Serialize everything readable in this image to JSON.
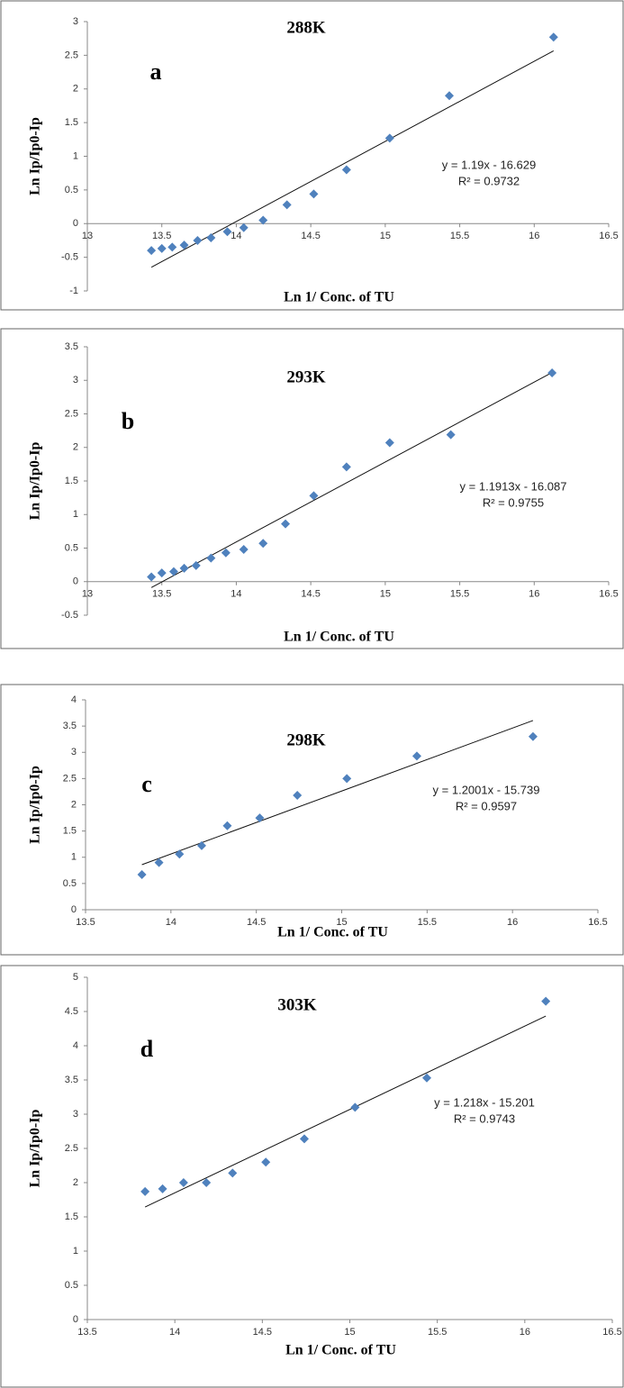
{
  "chart_data": [
    {
      "type": "scatter",
      "title": "288K",
      "panel_label": "a",
      "x_label": "Ln 1/ Conc. of TU",
      "y_label": "Ln Ip/Ip0-Ip",
      "color": "#4f81bd",
      "x": [
        13.43,
        13.5,
        13.57,
        13.65,
        13.74,
        13.83,
        13.94,
        14.05,
        14.18,
        14.34,
        14.52,
        14.74,
        15.03,
        15.43,
        16.13
      ],
      "values": [
        -0.4,
        -0.37,
        -0.35,
        -0.32,
        -0.25,
        -0.21,
        -0.12,
        -0.06,
        0.05,
        0.28,
        0.44,
        0.8,
        1.27,
        1.9,
        2.77
      ],
      "xlim": [
        13,
        16.5
      ],
      "ylim": [
        -1,
        3
      ],
      "xticks": [
        13,
        13.5,
        14,
        14.5,
        15,
        15.5,
        16,
        16.5
      ],
      "yticks": [
        -1,
        -0.5,
        0,
        0.5,
        1,
        1.5,
        2,
        2.5,
        3
      ],
      "trendline": {
        "slope": 1.19,
        "intercept": -16.629
      },
      "equation": "y = 1.19x - 16.629",
      "r2": "R² = 0.9732"
    },
    {
      "type": "scatter",
      "title": "293K",
      "panel_label": "b",
      "x_label": "Ln 1/ Conc. of TU",
      "y_label": "Ln Ip/Ip0-Ip",
      "color": "#4f81bd",
      "x": [
        13.43,
        13.5,
        13.58,
        13.65,
        13.73,
        13.83,
        13.93,
        14.05,
        14.18,
        14.33,
        14.52,
        14.74,
        15.03,
        15.44,
        16.12
      ],
      "values": [
        0.07,
        0.13,
        0.15,
        0.2,
        0.24,
        0.35,
        0.43,
        0.48,
        0.57,
        0.86,
        1.28,
        1.71,
        2.07,
        2.19,
        3.11
      ],
      "xlim": [
        13,
        16.5
      ],
      "ylim": [
        -0.5,
        3.5
      ],
      "xticks": [
        13,
        13.5,
        14,
        14.5,
        15,
        15.5,
        16,
        16.5
      ],
      "yticks": [
        -0.5,
        0,
        0.5,
        1,
        1.5,
        2,
        2.5,
        3,
        3.5
      ],
      "trendline": {
        "slope": 1.1913,
        "intercept": -16.087
      },
      "equation": "y = 1.1913x - 16.087",
      "r2": "R² = 0.9755"
    },
    {
      "type": "scatter",
      "title": "298K",
      "panel_label": "c",
      "x_label": "Ln 1/ Conc. of TU",
      "y_label": "Ln Ip/Ip0-Ip",
      "color": "#4f81bd",
      "x": [
        13.83,
        13.93,
        14.05,
        14.18,
        14.33,
        14.52,
        14.74,
        15.03,
        15.44,
        16.12
      ],
      "values": [
        0.67,
        0.9,
        1.06,
        1.22,
        1.6,
        1.75,
        2.18,
        2.5,
        2.93,
        3.3
      ],
      "xlim": [
        13.5,
        16.5
      ],
      "ylim": [
        0,
        4
      ],
      "xticks": [
        13.5,
        14,
        14.5,
        15,
        15.5,
        16,
        16.5
      ],
      "yticks": [
        0,
        0.5,
        1,
        1.5,
        2,
        2.5,
        3,
        3.5,
        4
      ],
      "trendline": {
        "slope": 1.2001,
        "intercept": -15.739
      },
      "equation": "y = 1.2001x - 15.739",
      "r2": "R² = 0.9597"
    },
    {
      "type": "scatter",
      "title": "303K",
      "panel_label": "d",
      "x_label": "Ln 1/ Conc. of TU",
      "y_label": "Ln Ip/Ip0-Ip",
      "color": "#4f81bd",
      "x": [
        13.83,
        13.93,
        14.05,
        14.18,
        14.33,
        14.52,
        14.74,
        15.03,
        15.44,
        16.12
      ],
      "values": [
        1.87,
        1.91,
        2.0,
        2.0,
        2.14,
        2.3,
        2.64,
        3.1,
        3.53,
        4.65
      ],
      "xlim": [
        13.5,
        16.5
      ],
      "ylim": [
        0,
        5
      ],
      "xticks": [
        13.5,
        14,
        14.5,
        15,
        15.5,
        16,
        16.5
      ],
      "yticks": [
        0,
        0.5,
        1,
        1.5,
        2,
        2.5,
        3,
        3.5,
        4,
        4.5,
        5
      ],
      "trendline": {
        "slope": 1.218,
        "intercept": -15.201
      },
      "equation": "y = 1.218x - 15.201",
      "r2": "R² = 0.9743"
    }
  ]
}
